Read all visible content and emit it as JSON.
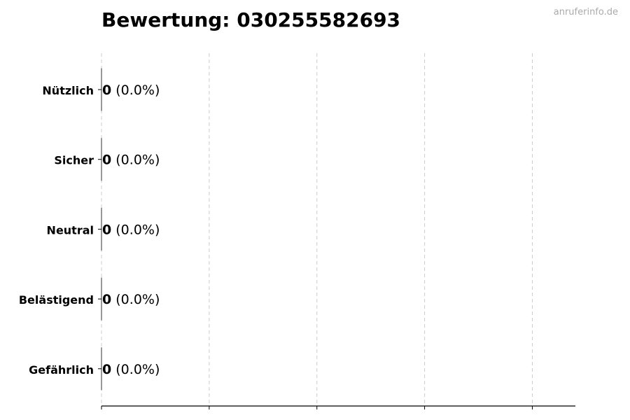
{
  "chart_data": {
    "type": "bar",
    "orientation": "horizontal",
    "title": "Bewertung: 030255582693",
    "categories": [
      "Nützlich",
      "Sicher",
      "Neutral",
      "Belästigend",
      "Gefährlich"
    ],
    "values": [
      0,
      0,
      0,
      0,
      0
    ],
    "data_labels": [
      {
        "count": "0",
        "percent": "(0.0%)"
      },
      {
        "count": "0",
        "percent": "(0.0%)"
      },
      {
        "count": "0",
        "percent": "(0.0%)"
      },
      {
        "count": "0",
        "percent": "(0.0%)"
      },
      {
        "count": "0",
        "percent": "(0.0%)"
      }
    ],
    "xlabel": "",
    "ylabel": "",
    "xlim": [
      0,
      4.4
    ],
    "xticks": [
      0,
      1,
      2,
      3,
      4
    ],
    "grid": "vertical dashed",
    "colors": {
      "bar_edge": "#333333",
      "grid": "#cccccc",
      "axis": "#000000"
    }
  },
  "watermark": "anruferinfo.de"
}
